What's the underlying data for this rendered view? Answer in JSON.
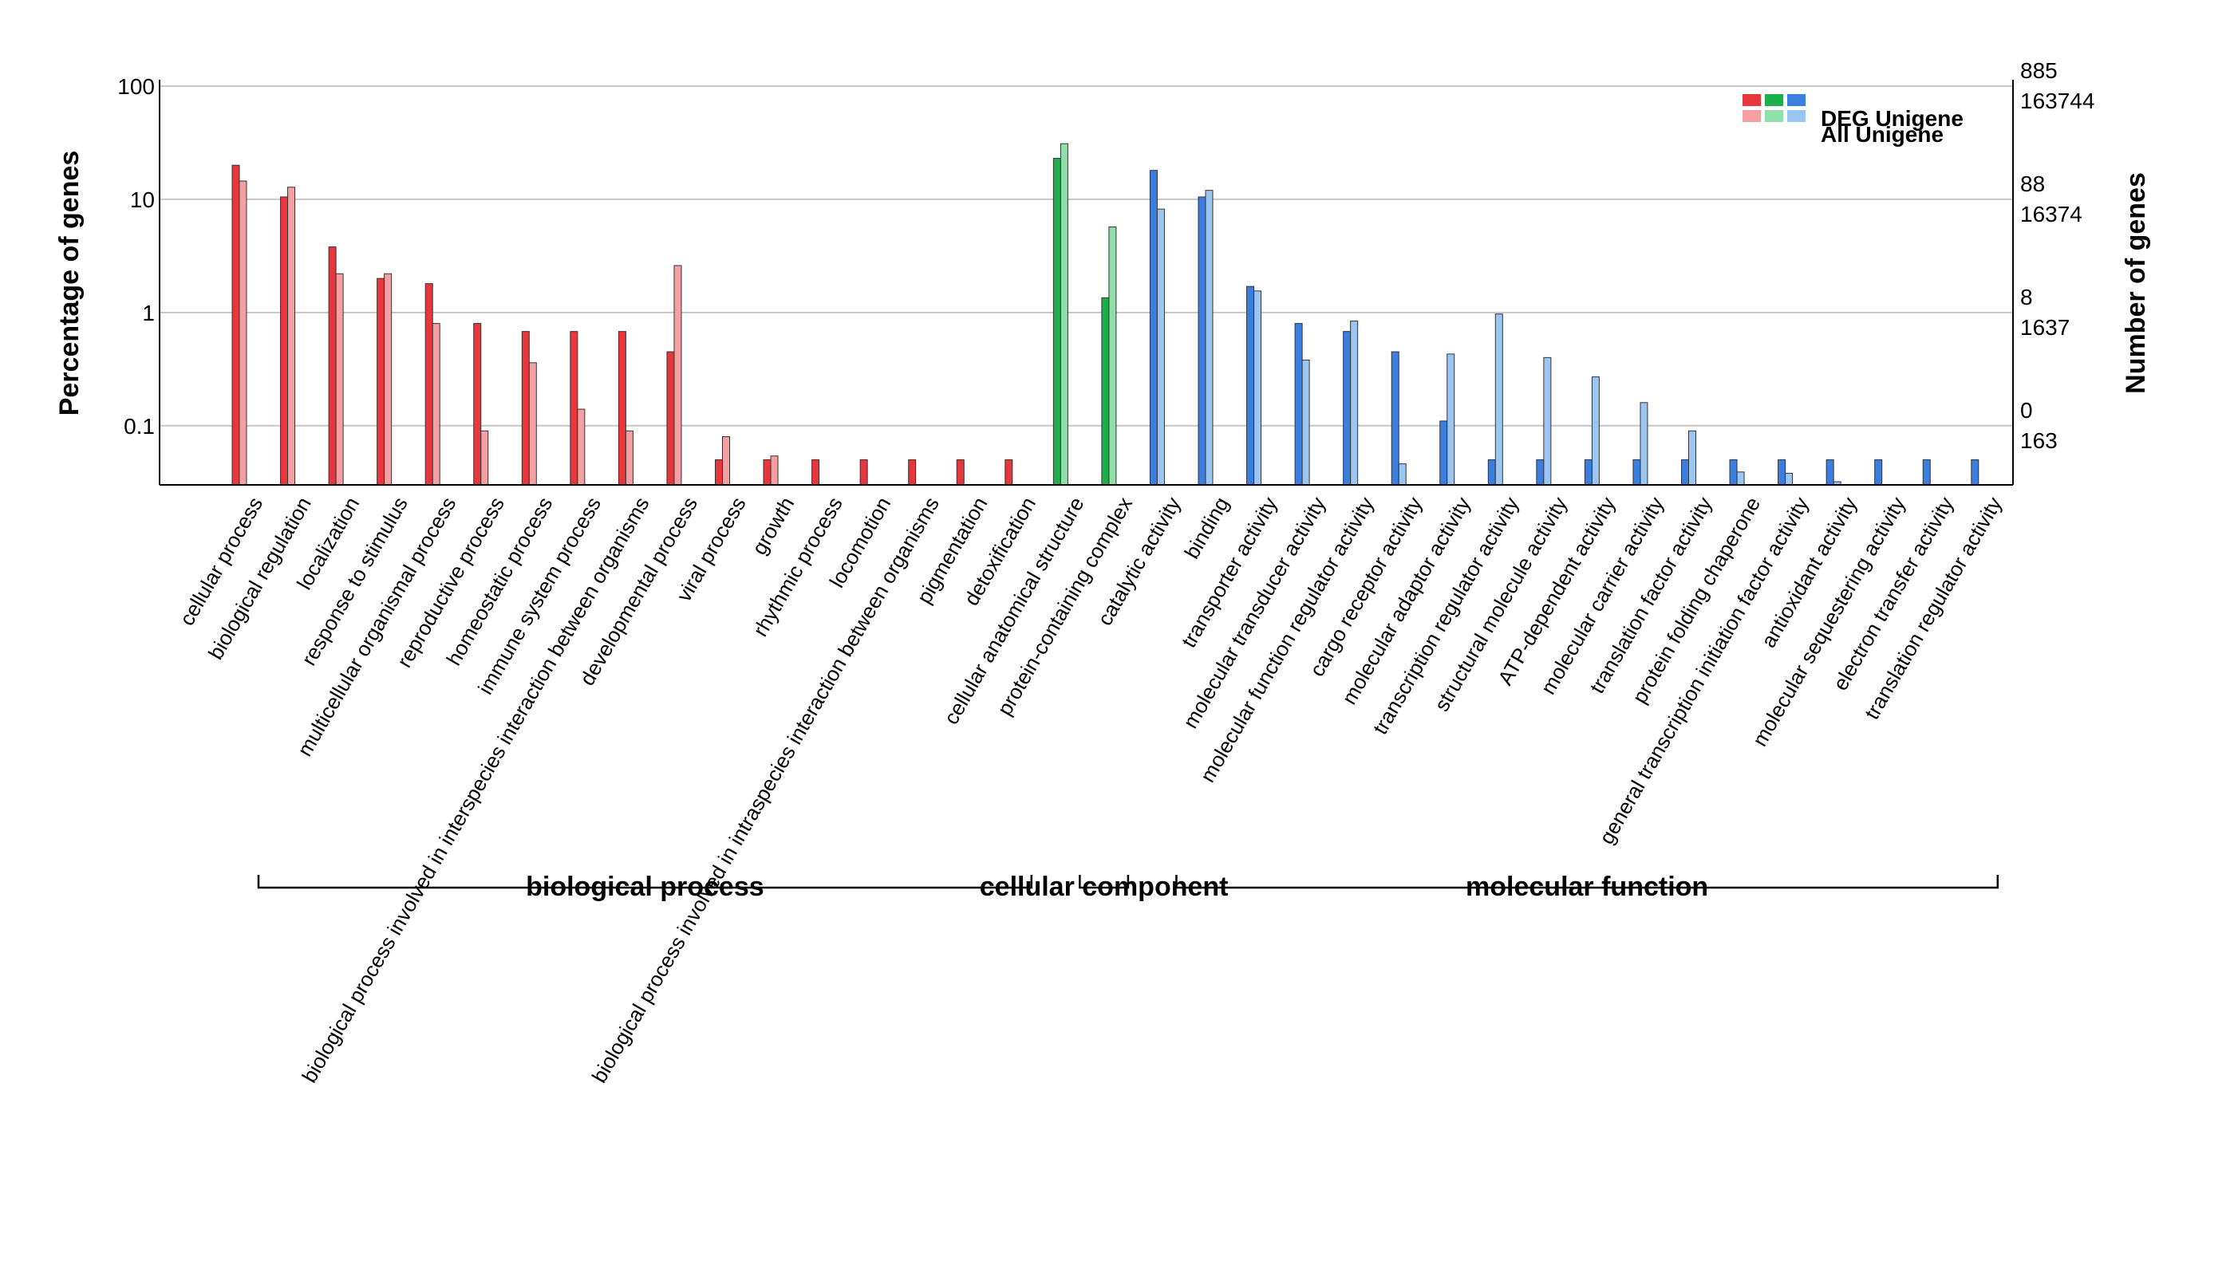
{
  "chart_data": {
    "type": "bar",
    "ylabel_left": "Percentage of genes",
    "ylabel_right": "Number of genes",
    "yscale": "log",
    "ylim": [
      0.03,
      100
    ],
    "left_ticks": [
      "100",
      "10",
      "1",
      "0.1"
    ],
    "right_ticks": [
      {
        "top": "885",
        "bottom": "163744"
      },
      {
        "top": "88",
        "bottom": "16374"
      },
      {
        "top": "8",
        "bottom": "1637"
      },
      {
        "top": "0",
        "bottom": "163"
      }
    ],
    "grid": true,
    "legend": {
      "position": "top-right",
      "entries": [
        "DEG Unigene",
        "All Unigene"
      ]
    },
    "colors": {
      "biological_process": {
        "deg": "#e8363d",
        "all": "#f4a0a3"
      },
      "cellular_component": {
        "deg": "#1fae4c",
        "all": "#8fe0a8"
      },
      "molecular_function": {
        "deg": "#3a7fe0",
        "all": "#9cc6f2"
      }
    },
    "groups": [
      {
        "label": "biological process",
        "key": "biological_process",
        "categories": [
          {
            "name": "cellular process",
            "deg": 20.0,
            "all": 14.5
          },
          {
            "name": "biological regulation",
            "deg": 10.5,
            "all": 12.8
          },
          {
            "name": "localization",
            "deg": 3.8,
            "all": 2.2
          },
          {
            "name": "response to stimulus",
            "deg": 2.0,
            "all": 2.2
          },
          {
            "name": "multicellular organismal process",
            "deg": 1.8,
            "all": 0.8
          },
          {
            "name": "reproductive process",
            "deg": 0.8,
            "all": 0.09
          },
          {
            "name": "homeostatic process",
            "deg": 0.68,
            "all": 0.36
          },
          {
            "name": "immune system process",
            "deg": 0.68,
            "all": 0.14
          },
          {
            "name": "biological process involved in interspecies interaction between organisms",
            "deg": 0.68,
            "all": 0.09
          },
          {
            "name": "developmental process",
            "deg": 0.45,
            "all": 2.6
          },
          {
            "name": "viral process",
            "deg": 0.05,
            "all": 0.08
          },
          {
            "name": "growth",
            "deg": 0.05,
            "all": 0.054
          },
          {
            "name": "rhythmic process",
            "deg": 0.05,
            "all": 0
          },
          {
            "name": "locomotion",
            "deg": 0.05,
            "all": 0
          },
          {
            "name": "biological process involved in intraspecies interaction between organisms",
            "deg": 0.05,
            "all": 0
          },
          {
            "name": "pigmentation",
            "deg": 0.05,
            "all": 0
          },
          {
            "name": "detoxification",
            "deg": 0.05,
            "all": 0
          }
        ]
      },
      {
        "label": "cellular component",
        "key": "cellular_component",
        "categories": [
          {
            "name": "cellular anatomical structure",
            "deg": 23.0,
            "all": 31.0
          },
          {
            "name": "protein-containing complex",
            "deg": 1.35,
            "all": 5.7
          }
        ]
      },
      {
        "label": "molecular function",
        "key": "molecular_function",
        "categories": [
          {
            "name": "catalytic activity",
            "deg": 18.0,
            "all": 8.2
          },
          {
            "name": "binding",
            "deg": 10.5,
            "all": 12.0
          },
          {
            "name": "transporter activity",
            "deg": 1.7,
            "all": 1.55
          },
          {
            "name": "molecular transducer activity",
            "deg": 0.8,
            "all": 0.38
          },
          {
            "name": "molecular function regulator activity",
            "deg": 0.68,
            "all": 0.84
          },
          {
            "name": "cargo receptor activity",
            "deg": 0.45,
            "all": 0.046
          },
          {
            "name": "molecular adaptor activity",
            "deg": 0.11,
            "all": 0.43
          },
          {
            "name": "transcription regulator activity",
            "deg": 0.05,
            "all": 0.97
          },
          {
            "name": "structural molecule activity",
            "deg": 0.05,
            "all": 0.4
          },
          {
            "name": "ATP-dependent activity",
            "deg": 0.05,
            "all": 0.27
          },
          {
            "name": "molecular carrier activity",
            "deg": 0.05,
            "all": 0.16
          },
          {
            "name": "translation factor activity",
            "deg": 0.05,
            "all": 0.09
          },
          {
            "name": "protein folding chaperone",
            "deg": 0.05,
            "all": 0.039
          },
          {
            "name": "general transcription initiation factor activity",
            "deg": 0.05,
            "all": 0.038
          },
          {
            "name": "antioxidant activity",
            "deg": 0.05,
            "all": 0.032
          },
          {
            "name": "molecular sequestering activity",
            "deg": 0.05,
            "all": 0
          },
          {
            "name": "electron transfer activity",
            "deg": 0.05,
            "all": 0
          },
          {
            "name": "translation regulator activity",
            "deg": 0.05,
            "all": 0
          }
        ]
      }
    ]
  }
}
